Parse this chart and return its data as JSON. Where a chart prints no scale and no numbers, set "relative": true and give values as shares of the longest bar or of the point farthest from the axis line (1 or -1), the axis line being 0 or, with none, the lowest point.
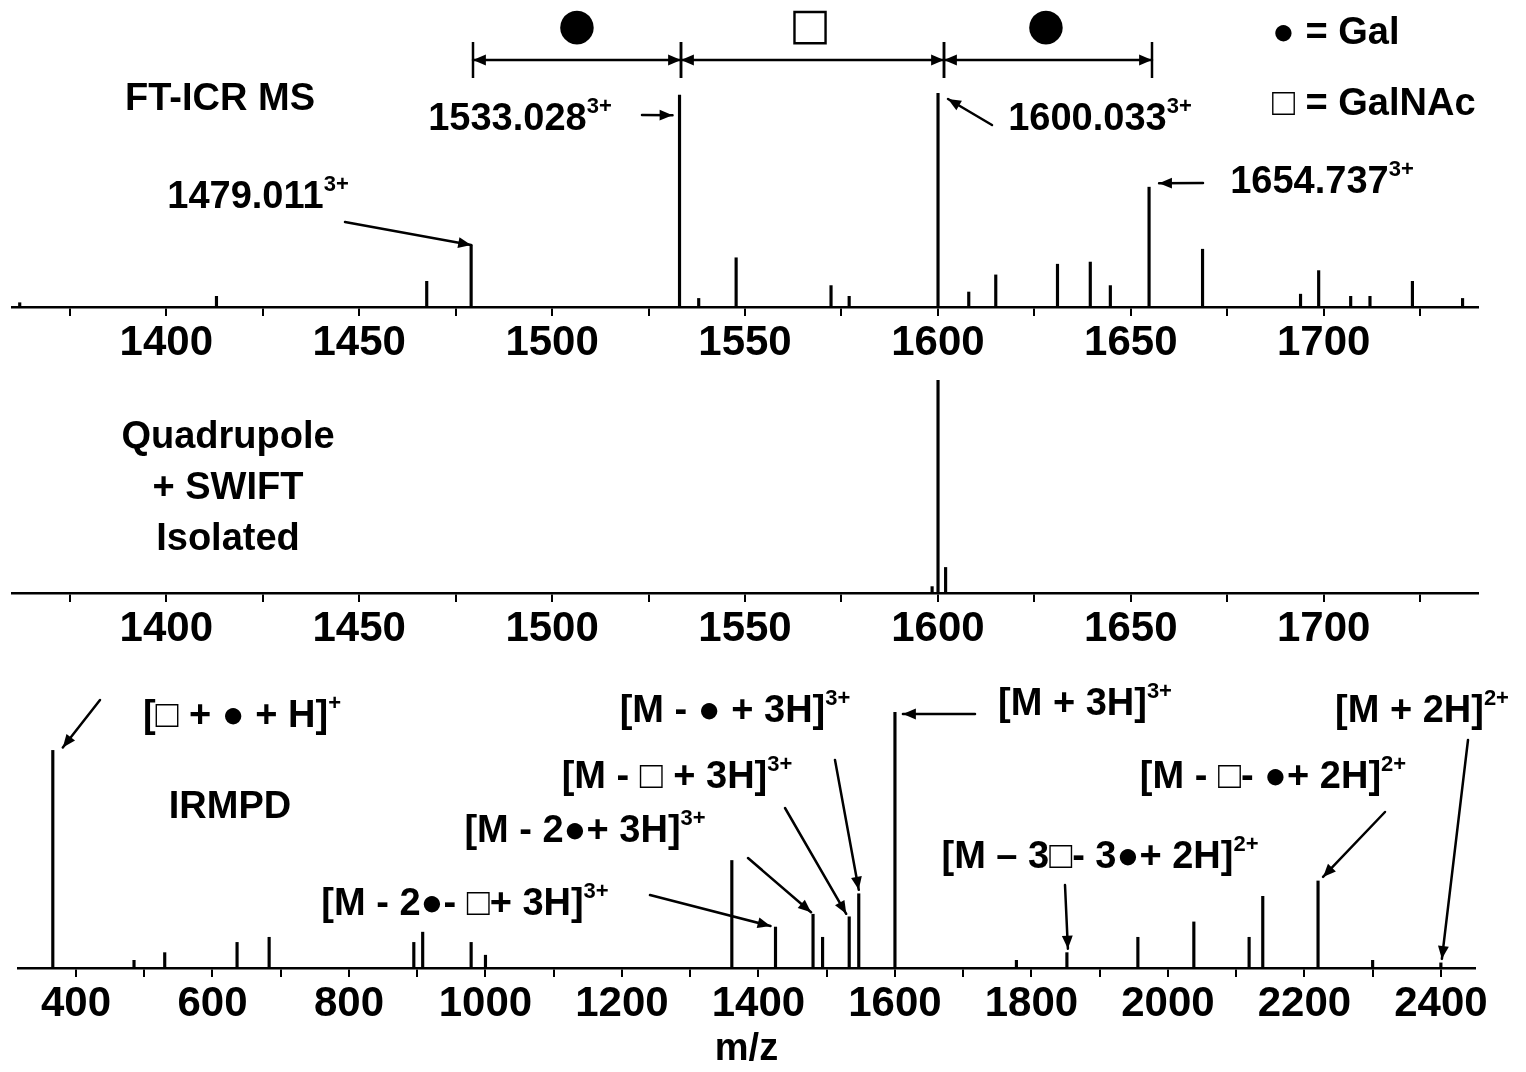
{
  "chart_data": [
    {
      "type": "bar",
      "title": "FT-ICR MS",
      "relative": true,
      "color": "#000000",
      "x": [
        1362,
        1413,
        1467.5,
        1479.011,
        1533.028,
        1538,
        1547.7,
        1572.3,
        1577,
        1600.033,
        1608,
        1615,
        1631,
        1639.5,
        1644.7,
        1654.737,
        1668.6,
        1694,
        1698.7,
        1707,
        1712,
        1723,
        1736
      ],
      "values": [
        0.02,
        0.05,
        0.12,
        0.29,
        0.99,
        0.04,
        0.23,
        0.1,
        0.05,
        1,
        0.07,
        0.15,
        0.2,
        0.21,
        0.1,
        0.56,
        0.27,
        0.06,
        0.17,
        0.05,
        0.05,
        0.12,
        0.04
      ],
      "xlim": [
        1360,
        1740
      ],
      "xticks": [
        {
          "value": 1375,
          "label": null
        },
        1400,
        {
          "value": 1425,
          "label": null
        },
        1450,
        {
          "value": 1475,
          "label": null
        },
        1500,
        {
          "value": 1525,
          "label": null
        },
        1550,
        {
          "value": 1575,
          "label": null
        },
        1600,
        {
          "value": 1625,
          "label": null
        },
        1650,
        {
          "value": 1675,
          "label": null
        },
        1700,
        {
          "value": 1725,
          "label": null
        }
      ],
      "annotations": [
        "●",
        "□",
        "●",
        {
          "text": "1479.011$^{3+}$",
          "x": 1479.011,
          "y": 0.29
        },
        {
          "text": "1533.028$^{3+}$",
          "x": 1533.028,
          "y": 0.99
        },
        {
          "text": "1600.033$^{3+}$",
          "x": 1600.033,
          "y": 1
        },
        {
          "text": "1654.737$^{3+}$",
          "x": 1654.737,
          "y": 0.56
        },
        "● = Gal",
        "□ = GalNAc"
      ]
    },
    {
      "type": "bar",
      "title": "Quadrupole + SWIFT Isolated",
      "relative": true,
      "color": "#000000",
      "x": [
        1598.5,
        1600.033,
        1602
      ],
      "values": [
        0.03,
        1,
        0.12
      ],
      "xlim": [
        1360,
        1740
      ],
      "xticks": [
        {
          "value": 1375,
          "label": null
        },
        1400,
        {
          "value": 1425,
          "label": null
        },
        1450,
        {
          "value": 1475,
          "label": null
        },
        1500,
        {
          "value": 1525,
          "label": null
        },
        1550,
        {
          "value": 1575,
          "label": null
        },
        1600,
        {
          "value": 1625,
          "label": null
        },
        1650,
        {
          "value": 1675,
          "label": null
        },
        1700,
        {
          "value": 1725,
          "label": null
        }
      ]
    },
    {
      "type": "bar",
      "title": "IRMPD",
      "xlabel": "m/z",
      "relative": true,
      "color": "#000000",
      "x": [
        366,
        485,
        530,
        636,
        683,
        895,
        908,
        979,
        1000,
        1361,
        1425,
        1480,
        1494,
        1533,
        1547,
        1600.033,
        1778,
        1852,
        1956,
        2038,
        2119,
        2139,
        2220,
        2300,
        2400
      ],
      "values": [
        0.85,
        0.03,
        0.06,
        0.1,
        0.12,
        0.1,
        0.14,
        0.1,
        0.05,
        0.42,
        0.16,
        0.21,
        0.12,
        0.2,
        0.29,
        1,
        0.03,
        0.06,
        0.12,
        0.18,
        0.12,
        0.28,
        0.34,
        0.03,
        0.02
      ],
      "xlim": [
        315,
        2450
      ],
      "xticks": [
        400,
        {
          "value": 500,
          "label": null
        },
        600,
        {
          "value": 700,
          "label": null
        },
        800,
        {
          "value": 900,
          "label": null
        },
        1000,
        {
          "value": 1100,
          "label": null
        },
        1200,
        {
          "value": 1300,
          "label": null
        },
        1400,
        {
          "value": 1500,
          "label": null
        },
        1600,
        {
          "value": 1700,
          "label": null
        },
        1800,
        {
          "value": 1900,
          "label": null
        },
        2000,
        {
          "value": 2100,
          "label": null
        },
        2200,
        {
          "value": 2300,
          "label": null
        },
        2400
      ],
      "annotations": [
        {
          "text": "[□ + ● + H]$^{+}$",
          "x": 366,
          "y": 0.85
        },
        {
          "text": "[M - ● + 3H]$^{3+}$",
          "x": 1547,
          "y": 0.29
        },
        {
          "text": "[M + 3H]$^{3+}$",
          "x": 1600.033,
          "y": 1
        },
        {
          "text": "[M + 2H]$^{2+}$",
          "x": 2400,
          "y": 0.02
        },
        {
          "text": "[M - □ + 3H]$^{3+}$",
          "x": 1533,
          "y": 0.2
        },
        {
          "text": "[M - □- ●+ 2H]$^{2+}$",
          "x": 2220,
          "y": 0.34
        },
        {
          "text": "[M - 2●+ 3H]$^{3+}$",
          "x": 1480,
          "y": 0.21
        },
        {
          "text": "[M – 3□- 3●+ 2H]$^{2+}$",
          "x": 1852,
          "y": 0.06
        },
        {
          "text": "[M - 2●- □+ 3H]$^{3+}$",
          "x": 1425,
          "y": 0.16
        }
      ]
    }
  ]
}
